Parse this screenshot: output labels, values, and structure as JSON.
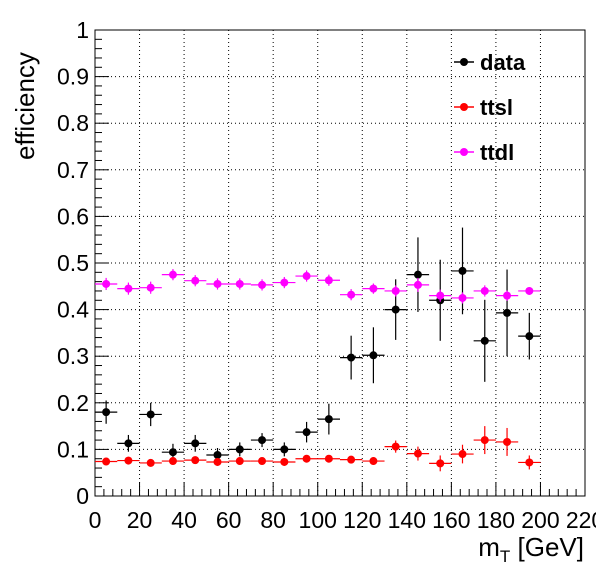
{
  "chart_data": {
    "type": "scatter",
    "title": "",
    "xlabel_main": "m",
    "xlabel_sub": "T",
    "xlabel_unit": " [GeV]",
    "ylabel": "efficiency",
    "xlim": [
      0,
      220
    ],
    "ylim": [
      0,
      1
    ],
    "xticks": [
      0,
      20,
      40,
      60,
      80,
      100,
      120,
      140,
      160,
      180,
      200,
      220
    ],
    "xtick_labels": [
      "0",
      "20",
      "40",
      "60",
      "80",
      "100",
      "120",
      "140",
      "160",
      "180",
      "200",
      "220"
    ],
    "yticks": [
      0,
      0.1,
      0.2,
      0.3,
      0.4,
      0.5,
      0.6,
      0.7,
      0.8,
      0.9,
      1
    ],
    "ytick_labels": [
      "0",
      "0.1",
      "0.2",
      "0.3",
      "0.4",
      "0.5",
      "0.6",
      "0.7",
      "0.8",
      "0.9",
      "1"
    ],
    "bin_half_width": 5,
    "legend_position": "top-right",
    "series": [
      {
        "name": "data",
        "color": "#000000",
        "points": [
          {
            "x": 5,
            "y": 0.18,
            "err": 0.025
          },
          {
            "x": 15,
            "y": 0.113,
            "err": 0.018
          },
          {
            "x": 25,
            "y": 0.175,
            "err": 0.025
          },
          {
            "x": 35,
            "y": 0.094,
            "err": 0.018
          },
          {
            "x": 45,
            "y": 0.113,
            "err": 0.018
          },
          {
            "x": 55,
            "y": 0.088,
            "err": 0.015
          },
          {
            "x": 65,
            "y": 0.1,
            "err": 0.015
          },
          {
            "x": 75,
            "y": 0.12,
            "err": 0.015
          },
          {
            "x": 85,
            "y": 0.1,
            "err": 0.015
          },
          {
            "x": 95,
            "y": 0.137,
            "err": 0.022
          },
          {
            "x": 105,
            "y": 0.165,
            "err": 0.033
          },
          {
            "x": 115,
            "y": 0.297,
            "err": 0.047
          },
          {
            "x": 125,
            "y": 0.302,
            "err": 0.06
          },
          {
            "x": 135,
            "y": 0.4,
            "err": 0.065
          },
          {
            "x": 145,
            "y": 0.475,
            "err": 0.08
          },
          {
            "x": 155,
            "y": 0.42,
            "err": 0.087
          },
          {
            "x": 165,
            "y": 0.483,
            "err": 0.093
          },
          {
            "x": 175,
            "y": 0.333,
            "err": 0.088
          },
          {
            "x": 185,
            "y": 0.393,
            "err": 0.093
          },
          {
            "x": 195,
            "y": 0.343,
            "err": 0.05
          }
        ]
      },
      {
        "name": "ttsl",
        "color": "#ff0000",
        "points": [
          {
            "x": 5,
            "y": 0.074,
            "err": 0.008
          },
          {
            "x": 15,
            "y": 0.076,
            "err": 0.008
          },
          {
            "x": 25,
            "y": 0.071,
            "err": 0.008
          },
          {
            "x": 35,
            "y": 0.075,
            "err": 0.008
          },
          {
            "x": 45,
            "y": 0.077,
            "err": 0.008
          },
          {
            "x": 55,
            "y": 0.073,
            "err": 0.008
          },
          {
            "x": 65,
            "y": 0.075,
            "err": 0.008
          },
          {
            "x": 75,
            "y": 0.075,
            "err": 0.008
          },
          {
            "x": 85,
            "y": 0.073,
            "err": 0.008
          },
          {
            "x": 95,
            "y": 0.08,
            "err": 0.008
          },
          {
            "x": 105,
            "y": 0.08,
            "err": 0.008
          },
          {
            "x": 115,
            "y": 0.078,
            "err": 0.008
          },
          {
            "x": 125,
            "y": 0.075,
            "err": 0.008
          },
          {
            "x": 135,
            "y": 0.106,
            "err": 0.013
          },
          {
            "x": 145,
            "y": 0.091,
            "err": 0.015
          },
          {
            "x": 155,
            "y": 0.07,
            "err": 0.017
          },
          {
            "x": 165,
            "y": 0.09,
            "err": 0.02
          },
          {
            "x": 175,
            "y": 0.12,
            "err": 0.03
          },
          {
            "x": 185,
            "y": 0.116,
            "err": 0.03
          },
          {
            "x": 195,
            "y": 0.072,
            "err": 0.015
          }
        ]
      },
      {
        "name": "ttdl",
        "color": "#ff00ff",
        "points": [
          {
            "x": 5,
            "y": 0.455,
            "err": 0.013
          },
          {
            "x": 15,
            "y": 0.445,
            "err": 0.013
          },
          {
            "x": 25,
            "y": 0.447,
            "err": 0.013
          },
          {
            "x": 35,
            "y": 0.475,
            "err": 0.012
          },
          {
            "x": 45,
            "y": 0.462,
            "err": 0.012
          },
          {
            "x": 55,
            "y": 0.455,
            "err": 0.012
          },
          {
            "x": 65,
            "y": 0.455,
            "err": 0.012
          },
          {
            "x": 75,
            "y": 0.453,
            "err": 0.012
          },
          {
            "x": 85,
            "y": 0.458,
            "err": 0.012
          },
          {
            "x": 95,
            "y": 0.472,
            "err": 0.012
          },
          {
            "x": 105,
            "y": 0.463,
            "err": 0.012
          },
          {
            "x": 115,
            "y": 0.432,
            "err": 0.012
          },
          {
            "x": 125,
            "y": 0.445,
            "err": 0.011
          },
          {
            "x": 135,
            "y": 0.44,
            "err": 0.012
          },
          {
            "x": 145,
            "y": 0.453,
            "err": 0.015
          },
          {
            "x": 155,
            "y": 0.43,
            "err": 0.013
          },
          {
            "x": 165,
            "y": 0.425,
            "err": 0.012
          },
          {
            "x": 175,
            "y": 0.44,
            "err": 0.012
          },
          {
            "x": 185,
            "y": 0.43,
            "err": 0.011
          },
          {
            "x": 195,
            "y": 0.44,
            "err": 0.008
          }
        ]
      }
    ]
  }
}
